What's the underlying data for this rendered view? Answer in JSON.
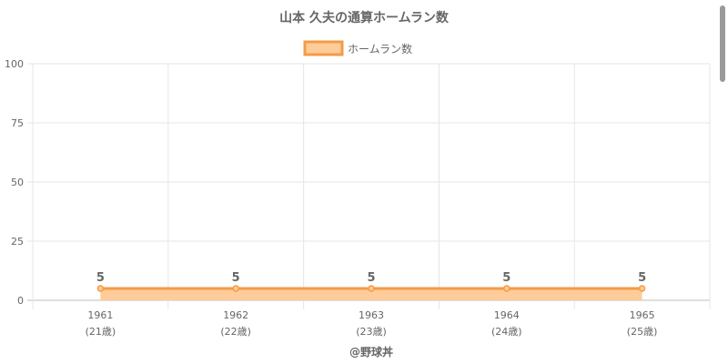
{
  "chart_data": {
    "type": "area",
    "title": "山本 久夫の通算ホームラン数",
    "legend": {
      "label": "ホームラン数",
      "placement": "top"
    },
    "categories": [
      "1961",
      "1962",
      "1963",
      "1964",
      "1965"
    ],
    "sub_labels": [
      "(21歳)",
      "(22歳)",
      "(23歳)",
      "(24歳)",
      "(25歳)"
    ],
    "series": [
      {
        "name": "ホームラン数",
        "values": [
          5,
          5,
          5,
          5,
          5
        ]
      }
    ],
    "data_labels": [
      "5",
      "5",
      "5",
      "5",
      "5"
    ],
    "yticks": [
      "0",
      "25",
      "50",
      "75",
      "100"
    ],
    "ylim": [
      0,
      100
    ],
    "grid": true,
    "colors": {
      "line": "#f59b45",
      "fill": "#fdcc9a",
      "grid": "#e6e6e6",
      "axis": "#bdbdbd"
    }
  },
  "credit": "@野球丼"
}
